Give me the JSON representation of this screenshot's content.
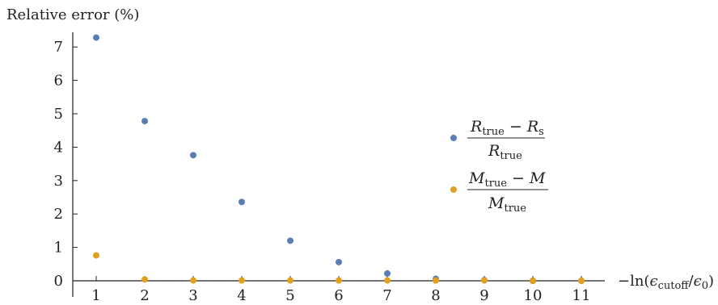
{
  "chart_data": {
    "type": "scatter",
    "ylabel": "Relative error (%)",
    "xlabel_parts": {
      "prefix": "−ln(",
      "num_symbol": "ϵ",
      "num_sub": "cutoff",
      "slash": "/",
      "den_symbol": "ϵ",
      "den_sub": "0",
      "suffix": ")"
    },
    "xlim": [
      0.5,
      11.5
    ],
    "ylim": [
      0,
      7.5
    ],
    "x_ticks": [
      "1",
      "2",
      "3",
      "4",
      "5",
      "6",
      "7",
      "8",
      "9",
      "10",
      "11"
    ],
    "y_ticks": [
      "0",
      "1",
      "2",
      "3",
      "4",
      "5",
      "6",
      "7"
    ],
    "grid": false,
    "legend_position": "right",
    "series": [
      {
        "color": "#5b7db5",
        "x": [
          1,
          2,
          3,
          4,
          5,
          6,
          7,
          8,
          9,
          10,
          11
        ],
        "y": [
          7.28,
          4.78,
          3.76,
          2.36,
          1.2,
          0.56,
          0.22,
          0.06,
          0.02,
          0.0,
          0.0
        ],
        "legend": {
          "num_a": "R",
          "num_a_sub": "true",
          "minus": " − ",
          "num_b": "R",
          "num_b_sub": "s",
          "den": "R",
          "den_sub": "true"
        }
      },
      {
        "color": "#e0a020",
        "x": [
          1,
          2,
          3,
          4,
          5,
          6,
          7,
          8,
          9,
          10,
          11
        ],
        "y": [
          0.76,
          0.04,
          0.01,
          0.01,
          0.01,
          0.01,
          0.01,
          0.01,
          0.01,
          0.0,
          0.0
        ],
        "legend": {
          "num_a": "M",
          "num_a_sub": "true",
          "minus": " − ",
          "num_b": "M",
          "num_b_sub": "",
          "den": "M",
          "den_sub": "true"
        }
      }
    ]
  }
}
